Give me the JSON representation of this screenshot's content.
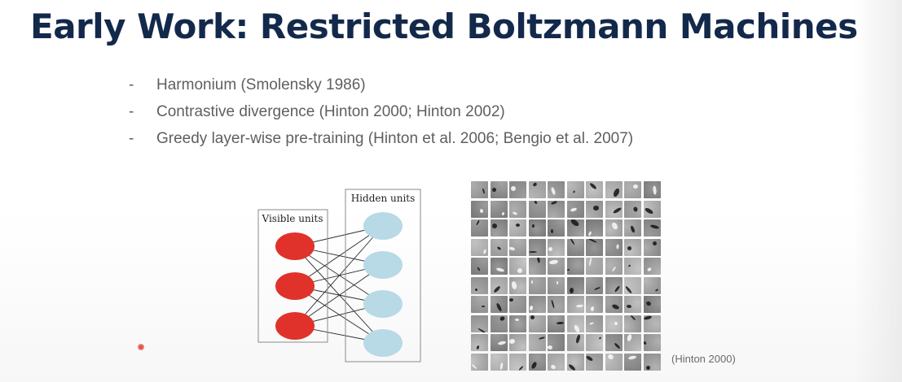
{
  "slide": {
    "title": "Early Work: Restricted Boltzmann Machines",
    "bullets": [
      {
        "marker": "-",
        "text": "Harmonium (Smolensky 1986)"
      },
      {
        "marker": "-",
        "text": "Contrastive divergence (Hinton 2000; Hinton 2002)"
      },
      {
        "marker": "-",
        "text": "Greedy layer-wise pre-training  (Hinton et al. 2006; Bengio et al. 2007)"
      }
    ],
    "citation": "(Hinton 2000)"
  },
  "rbm_diagram": {
    "visible_label": "Visible units",
    "hidden_label": "Hidden units",
    "visible_count": 3,
    "hidden_count": 4,
    "visible_color": "#e0322a",
    "hidden_color": "#b8d9e6"
  },
  "filter_grid": {
    "rows": 10,
    "cols": 10
  },
  "colors": {
    "title": "#13294b",
    "bullet_text": "#5f5f5f",
    "citation": "#6a6a6a",
    "pointer": "#e03a3a"
  }
}
